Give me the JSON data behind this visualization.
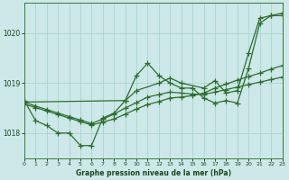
{
  "title": "Graphe pression niveau de la mer (hPa)",
  "background_color": "#cce8e8",
  "grid_color": "#aad4d4",
  "line_color": "#2d6e2d",
  "xlim": [
    0,
    23
  ],
  "ylim": [
    1017.5,
    1020.6
  ],
  "yticks": [
    1018,
    1019,
    1020
  ],
  "xticks": [
    0,
    1,
    2,
    3,
    4,
    5,
    6,
    7,
    8,
    9,
    10,
    11,
    12,
    13,
    14,
    15,
    16,
    17,
    18,
    19,
    20,
    21,
    22,
    23
  ],
  "series": [
    {
      "x": [
        0,
        1,
        2,
        3,
        4,
        5,
        6,
        7,
        8,
        9,
        10,
        11,
        12,
        13,
        14,
        15,
        16,
        17,
        18,
        19,
        20,
        21,
        22,
        23
      ],
      "y": [
        1018.65,
        1018.25,
        1018.15,
        1018.0,
        1018.0,
        1017.75,
        1017.75,
        1018.3,
        1018.4,
        1018.65,
        1019.15,
        1019.4,
        1019.15,
        1019.0,
        1018.9,
        1018.9,
        1018.7,
        1018.6,
        1018.65,
        1018.6,
        1019.3,
        1020.2,
        1020.35,
        1020.35
      ]
    },
    {
      "x": [
        0,
        1,
        2,
        3,
        4,
        5,
        6,
        7,
        8,
        9,
        10,
        11,
        12,
        13,
        14,
        15,
        16,
        17,
        18,
        19,
        20,
        21,
        22,
        23
      ],
      "y": [
        1018.58,
        1018.51,
        1018.44,
        1018.37,
        1018.3,
        1018.23,
        1018.16,
        1018.22,
        1018.28,
        1018.38,
        1018.48,
        1018.57,
        1018.63,
        1018.7,
        1018.72,
        1018.75,
        1018.8,
        1018.9,
        1018.98,
        1019.06,
        1019.13,
        1019.2,
        1019.28,
        1019.35
      ]
    },
    {
      "x": [
        0,
        1,
        2,
        3,
        4,
        5,
        6,
        7,
        8,
        9,
        10,
        11,
        12,
        13,
        14,
        15,
        16,
        17,
        18,
        19,
        20,
        21,
        22,
        23
      ],
      "y": [
        1018.62,
        1018.54,
        1018.47,
        1018.4,
        1018.33,
        1018.26,
        1018.19,
        1018.28,
        1018.38,
        1018.5,
        1018.61,
        1018.72,
        1018.77,
        1018.82,
        1018.8,
        1018.78,
        1018.77,
        1018.82,
        1018.87,
        1018.92,
        1018.97,
        1019.02,
        1019.07,
        1019.12
      ]
    },
    {
      "x": [
        0,
        9,
        10,
        12,
        13,
        14,
        16,
        17,
        18,
        19,
        20,
        21,
        22,
        23
      ],
      "y": [
        1018.62,
        1018.65,
        1018.85,
        1019.0,
        1019.1,
        1019.0,
        1018.9,
        1019.05,
        1018.8,
        1018.85,
        1019.6,
        1020.3,
        1020.35,
        1020.4
      ]
    }
  ],
  "marker": "+",
  "markersize": 4,
  "linewidth": 0.9
}
